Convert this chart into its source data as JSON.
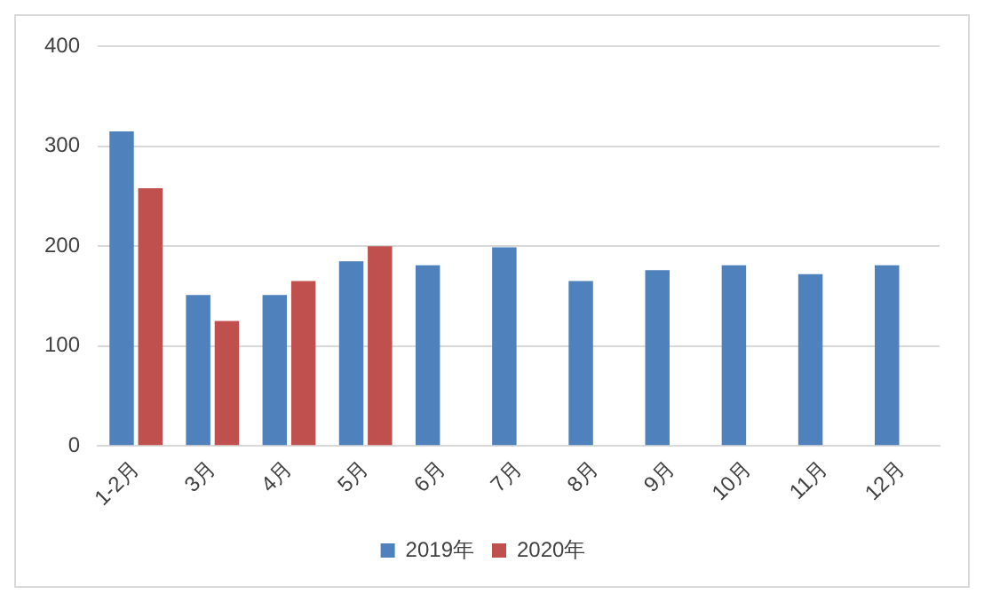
{
  "chart_data": {
    "type": "bar",
    "categories": [
      "1-2月",
      "3月",
      "4月",
      "5月",
      "6月",
      "7月",
      "8月",
      "9月",
      "10月",
      "11月",
      "12月"
    ],
    "series": [
      {
        "name": "2019年",
        "color": "#4f81bd",
        "values": [
          315,
          151,
          151,
          185,
          181,
          199,
          165,
          176,
          181,
          172,
          181
        ]
      },
      {
        "name": "2020年",
        "color": "#c0504d",
        "values": [
          258,
          125,
          165,
          200,
          null,
          null,
          null,
          null,
          null,
          null,
          null
        ]
      }
    ],
    "ylim": [
      0,
      400
    ],
    "yticks": [
      0,
      100,
      200,
      300,
      400
    ],
    "grid": "y",
    "legend": "bottom"
  }
}
